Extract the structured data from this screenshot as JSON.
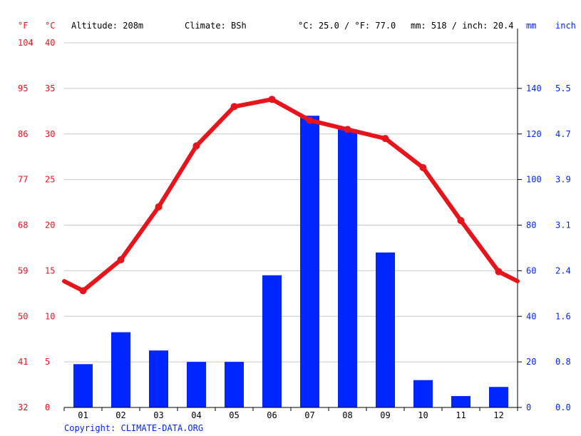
{
  "header": {
    "unit_f": "°F",
    "unit_c": "°C",
    "altitude": "Altitude: 208m",
    "climate": "Climate: BSh",
    "avg_temp": "°C: 25.0 / °F: 77.0",
    "precip_total": "mm: 518 / inch: 20.4",
    "unit_mm": "mm",
    "unit_inch": "inch"
  },
  "copyright": "Copyright: CLIMATE-DATA.ORG",
  "colors": {
    "temperature": "#e8141b",
    "precipitation": "#0026ff",
    "grid": "#c8c8c8"
  },
  "chart_data": {
    "type": "bar",
    "categories": [
      "01",
      "02",
      "03",
      "04",
      "05",
      "06",
      "07",
      "08",
      "09",
      "10",
      "11",
      "12"
    ],
    "series": [
      {
        "type": "bar",
        "axis": "right",
        "unit": "mm",
        "values": [
          19,
          33,
          25,
          20,
          20,
          58,
          128,
          122,
          68,
          12,
          5,
          9
        ]
      },
      {
        "type": "line",
        "axis": "left",
        "unit": "°C",
        "values": [
          12.8,
          16.2,
          22.0,
          28.7,
          33.0,
          33.8,
          31.5,
          30.5,
          29.5,
          26.3,
          20.5,
          14.9
        ]
      }
    ],
    "left_axis": {
      "celsius_ticks": [
        "0",
        "5",
        "10",
        "15",
        "20",
        "25",
        "30",
        "35",
        "40"
      ],
      "fahrenheit_ticks": [
        "32",
        "41",
        "50",
        "59",
        "68",
        "77",
        "86",
        "95",
        "104"
      ],
      "ylim": [
        0,
        40
      ]
    },
    "right_axis": {
      "mm_ticks": [
        "0",
        "20",
        "40",
        "60",
        "80",
        "100",
        "120",
        "140"
      ],
      "inch_ticks": [
        "0.0",
        "0.8",
        "1.6",
        "2.4",
        "3.1",
        "3.9",
        "4.7",
        "5.5"
      ],
      "ylim": [
        0,
        160
      ]
    },
    "grid": true,
    "legend": "none"
  }
}
